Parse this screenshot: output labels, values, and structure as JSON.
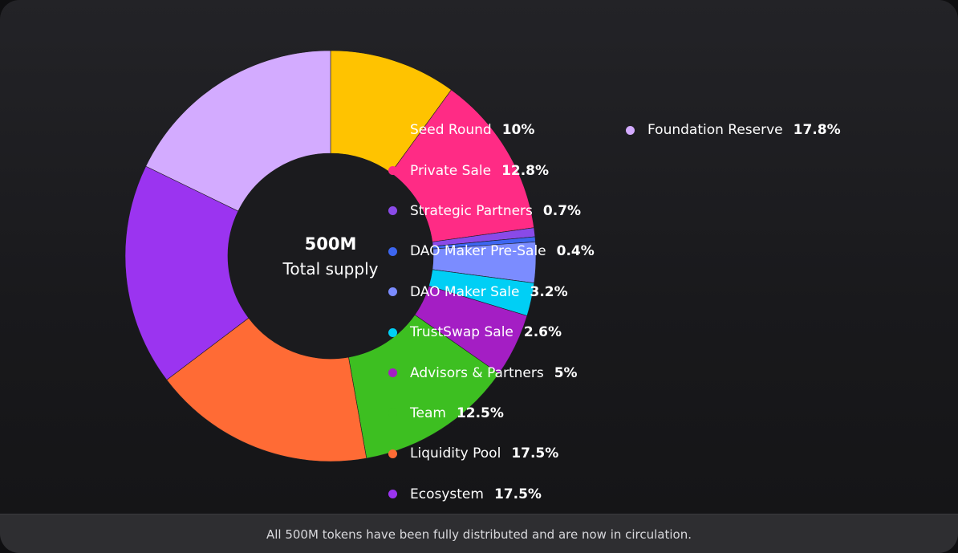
{
  "chart_data": {
    "type": "pie",
    "center": {
      "title": "500M",
      "subtitle": "Total supply"
    },
    "categories": [
      "Seed Round",
      "Private Sale",
      "Strategic Partners",
      "DAO Maker Pre-Sale",
      "DAO Maker Sale",
      "TrustSwap Sale",
      "Advisors & Partners",
      "Team",
      "Liquidity Pool",
      "Ecosystem",
      "Foundation Reserve"
    ],
    "values": [
      10,
      12.8,
      0.7,
      0.4,
      3.2,
      2.6,
      5,
      12.5,
      17.5,
      17.5,
      17.8
    ],
    "value_labels": [
      "10%",
      "12.8%",
      "0.7%",
      "0.4%",
      "3.2%",
      "2.6%",
      "5%",
      "12.5%",
      "17.5%",
      "17.5%",
      "17.8%"
    ],
    "colors": [
      "#ffc300",
      "#ff2b85",
      "#8a4ae8",
      "#3d66f0",
      "#7b8cff",
      "#00cff5",
      "#a41ec4",
      "#3dbf21",
      "#ff6b35",
      "#9b34f0",
      "#d3abff"
    ],
    "legend_columns": [
      [
        0,
        1,
        2,
        3,
        4,
        5,
        6,
        7,
        8,
        9
      ],
      [
        10
      ]
    ],
    "legend_placement": "right"
  },
  "footer": {
    "text": "All 500M tokens have been fully distributed and are now in circulation."
  }
}
